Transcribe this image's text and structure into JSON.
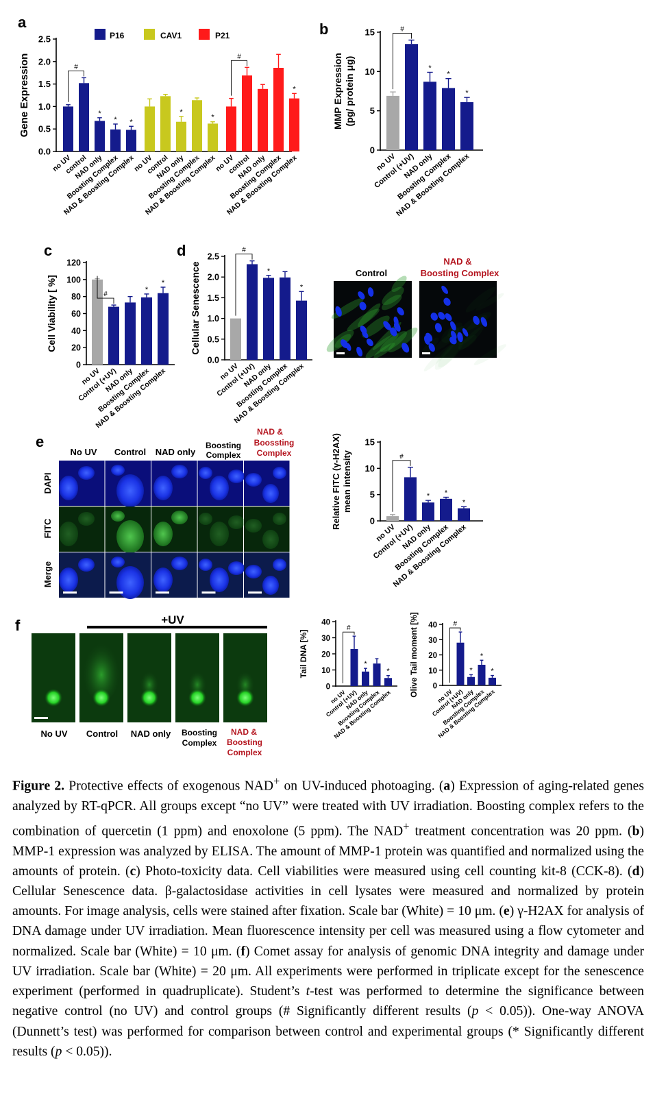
{
  "figure": {
    "colors": {
      "navy": "#141b8c",
      "gray": "#a8a8a8",
      "olive": "#c8c81e",
      "red": "#ff1a1a",
      "dapi": "#0a1fd6",
      "fitc_bg": "#0f3b12",
      "comet": "#1f9a1f",
      "dark_red": "#b4141e"
    },
    "panels": {
      "a": {
        "letter": "a",
        "ylabel": "Gene Expression",
        "legend": [
          "P16",
          "CAV1",
          "P21"
        ],
        "ticks": [
          "0.0",
          "0.5",
          "1.0",
          "1.5",
          "2.0",
          "2.5"
        ]
      },
      "b": {
        "letter": "b",
        "ylabel1": "MMP Expression",
        "ylabel2": "(pg/ protein μg)",
        "ticks": [
          "0",
          "5",
          "10",
          "15"
        ]
      },
      "c": {
        "letter": "c",
        "ylabel": "Cell Viability [ %]",
        "ticks": [
          "0",
          "20",
          "40",
          "60",
          "80",
          "100",
          "120"
        ]
      },
      "d": {
        "letter": "d",
        "ylabel": "Cellular Senescence",
        "ticks": [
          "0.0",
          "0.5",
          "1.0",
          "1.5",
          "2.0",
          "2.5"
        ],
        "image_titles": [
          "Control",
          "NAD &",
          "Boosting Complex"
        ]
      },
      "e": {
        "letter": "e",
        "col_titles": [
          "No UV",
          "Control",
          "NAD only",
          "Boosting",
          "Complex",
          "NAD &",
          "Boossting",
          "Complex"
        ],
        "row_labels": [
          "DAPI",
          "FITC",
          "Merge"
        ],
        "ylabel1": "Relative FITC (γ-H2AX)",
        "ylabel2": "mean intensity",
        "ticks": [
          "0",
          "5",
          "10",
          "15"
        ]
      },
      "f": {
        "letter": "f",
        "uv_label": "+UV",
        "labels": [
          "No UV",
          "Control",
          "NAD only",
          "Boosting",
          "Complex",
          "NAD &",
          "Boosting",
          "Complex"
        ],
        "tail_ylabel": "Tail DNA [%]",
        "olive_ylabel": "Olive Tail moment [%]",
        "ticks": [
          "0",
          "10",
          "20",
          "30",
          "40"
        ]
      }
    },
    "marks": {
      "hash": "#",
      "star": "*"
    }
  },
  "chart_data": [
    {
      "panel": "a",
      "type": "bar",
      "ylabel": "Gene Expression",
      "ylim": [
        0,
        2.5
      ],
      "categories": [
        "no UV",
        "control",
        "NAD only",
        "Boosting Complex",
        "NAD & Boosting Complex"
      ],
      "series": [
        {
          "name": "P16",
          "values": [
            1.0,
            1.52,
            0.68,
            0.49,
            0.48
          ],
          "errors": [
            0.04,
            0.12,
            0.07,
            0.12,
            0.08
          ],
          "marks": [
            "",
            "#",
            "*",
            "*",
            "*"
          ]
        },
        {
          "name": "CAV1",
          "values": [
            1.0,
            1.23,
            0.66,
            1.14,
            0.62
          ],
          "errors": [
            0.17,
            0.04,
            0.12,
            0.05,
            0.04
          ],
          "marks": [
            "",
            "",
            "*",
            "",
            "*"
          ]
        },
        {
          "name": "P21",
          "values": [
            1.0,
            1.69,
            1.39,
            1.86,
            1.18
          ],
          "errors": [
            0.18,
            0.18,
            0.1,
            0.3,
            0.11
          ],
          "marks": [
            "",
            "#",
            "",
            "",
            "*"
          ]
        }
      ],
      "legend": "top"
    },
    {
      "panel": "b",
      "type": "bar",
      "ylabel": "MMP Expression (pg/ protein μg)",
      "ylim": [
        0,
        15
      ],
      "categories": [
        "no UV",
        "Control (+UV)",
        "NAD only",
        "Boosting Complex",
        "NAD & Boosting Complex"
      ],
      "values": [
        6.9,
        13.5,
        8.7,
        7.9,
        6.1
      ],
      "errors": [
        0.5,
        0.5,
        1.2,
        1.2,
        0.6
      ],
      "marks": [
        "",
        "#",
        "*",
        "*",
        "*"
      ]
    },
    {
      "panel": "c",
      "type": "bar",
      "ylabel": "Cell Viability [ %]",
      "ylim": [
        0,
        120
      ],
      "categories": [
        "no UV",
        "Control (+UV)",
        "NAD only",
        "Boosting Complex",
        "NAD & Boosting Complex"
      ],
      "values": [
        100,
        68,
        73,
        79,
        84
      ],
      "errors": [
        1,
        2,
        7,
        4,
        7
      ],
      "marks": [
        "",
        "#",
        "",
        "*",
        "*"
      ]
    },
    {
      "panel": "d",
      "type": "bar",
      "ylabel": "Cellular Senescence",
      "ylim": [
        0,
        2.5
      ],
      "categories": [
        "no UV",
        "Control (+UV)",
        "NAD only",
        "Boosting Complex",
        "NAD & Boosting Complex"
      ],
      "values": [
        1.0,
        2.31,
        1.98,
        1.99,
        1.43
      ],
      "errors": [
        0.0,
        0.08,
        0.06,
        0.14,
        0.22
      ],
      "marks": [
        "",
        "#",
        "*",
        "",
        "*"
      ]
    },
    {
      "panel": "e",
      "type": "bar",
      "ylabel": "Relative FITC (γ-H2AX) mean intensity",
      "ylim": [
        0,
        15
      ],
      "categories": [
        "no UV",
        "Control (+UV)",
        "NAD only",
        "Boosting Complex",
        "NAD & Boosting Complex"
      ],
      "values": [
        0.9,
        8.3,
        3.5,
        4.2,
        2.4
      ],
      "errors": [
        0.3,
        1.9,
        0.4,
        0.3,
        0.3
      ],
      "marks": [
        "",
        "#",
        "*",
        "*",
        "*"
      ]
    },
    {
      "panel": "f-tail",
      "type": "bar",
      "ylabel": "Tail DNA [%]",
      "ylim": [
        0,
        40
      ],
      "categories": [
        "no UV",
        "Control (+UV)",
        "NAD only",
        "Boosting Complex",
        "NAD & Boosting Complex"
      ],
      "values": [
        0,
        23,
        9,
        14,
        5
      ],
      "errors": [
        0,
        8,
        2,
        3,
        1.5
      ],
      "marks": [
        "",
        "#",
        "*",
        "",
        "*"
      ]
    },
    {
      "panel": "f-olive",
      "type": "bar",
      "ylabel": "Olive Tail moment [%]",
      "ylim": [
        0,
        40
      ],
      "categories": [
        "no UV",
        "Control (+UV)",
        "NAD only",
        "Boosting Complex",
        "NAD & Boosting Complex"
      ],
      "values": [
        0,
        28,
        5.5,
        13.5,
        5
      ],
      "errors": [
        0,
        7,
        1.5,
        3,
        1.5
      ],
      "marks": [
        "",
        "#",
        "*",
        "*",
        "*"
      ]
    }
  ],
  "caption": {
    "s1_label": "Figure 2.",
    "s1": " Protective effects of exogenous NAD",
    "plus": "+",
    "s2": " on UV-induced photoaging. (",
    "a": "a",
    "s3": ") Expression of aging-related genes analyzed by RT-qPCR. All groups except “no UV” were treated with UV irradiation. Boosting complex refers to the combination of quercetin (1 ppm) and enoxolone (5 ppm). The NAD",
    "s4": " treatment concentration was 20 ppm. (",
    "b": "b",
    "s5": ") MMP-1 expression was analyzed by ELISA. The amount of MMP-1 protein was quantified and normalized using the amounts of protein. (",
    "c": "c",
    "s6": ") Photo-toxicity data. Cell viabilities were measured using cell counting kit-8 (CCK-8). (",
    "d": "d",
    "s7": ") Cellular Senescence data. β-galactosidase activities in cell lysates were measured and normalized by protein amounts. For image analysis, cells were stained after fixation. Scale bar (White) = 10 μm. (",
    "e": "e",
    "s8": ") γ-H2AX for analysis of DNA damage under UV irradiation. Mean fluorescence intensity per cell was measured using a flow cytometer and normalized. Scale bar (White) = 10 μm. (",
    "f": "f",
    "s9": ") Comet assay for analysis of genomic DNA integrity and damage under UV irradiation. Scale bar (White) = 20 μm. All experiments were performed in triplicate except for the senescence experiment (performed in quadruplicate). Student’s ",
    "t": "t",
    "s10": "-test was performed to determine the significance between negative control (no UV) and control groups (# Significantly different results (",
    "p1": "p",
    "s11": " < 0.05)). One-way ANOVA (Dunnett’s test) was performed for comparison between control and experimental groups (* Significantly different results (",
    "p2": "p",
    "s12": " < 0.05))."
  }
}
